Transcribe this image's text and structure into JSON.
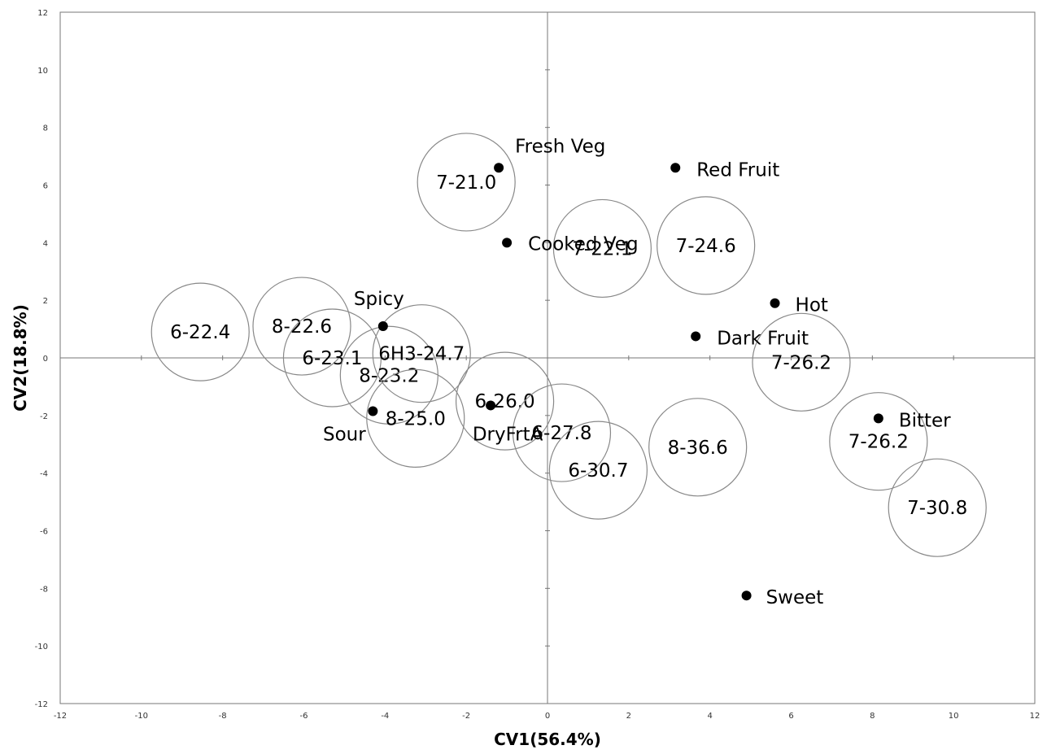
{
  "chart_data": {
    "type": "scatter",
    "xlabel": "CV1(56.4%)",
    "ylabel": "CV2(18.8%)",
    "xlim": [
      -12,
      12
    ],
    "ylim": [
      -12,
      12
    ],
    "xticks": [
      "-12",
      "-10",
      "-8",
      "-6",
      "-4",
      "-2",
      "0",
      "2",
      "4",
      "6",
      "8",
      "10",
      "12"
    ],
    "yticks": [
      "-12",
      "-10",
      "-8",
      "-6",
      "-4",
      "-2",
      "0",
      "2",
      "4",
      "6",
      "8",
      "10",
      "12"
    ],
    "grid": false,
    "samples": [
      {
        "label": "6-22.4",
        "x": -8.55,
        "y": 0.9
      },
      {
        "label": "8-22.6",
        "x": -6.05,
        "y": 1.1
      },
      {
        "label": "6-23.1",
        "x": -5.3,
        "y": 0.0
      },
      {
        "label": "8-23.2",
        "x": -3.9,
        "y": -0.6
      },
      {
        "label": "6H3-24.7",
        "x": -3.1,
        "y": 0.15
      },
      {
        "label": "8-25.0",
        "x": -3.25,
        "y": -2.1
      },
      {
        "label": "7-21.0",
        "x": -2.0,
        "y": 6.1
      },
      {
        "label": "6-26.0",
        "x": -1.05,
        "y": -1.5
      },
      {
        "label": "6-27.8",
        "x": 0.35,
        "y": -2.6
      },
      {
        "label": "6-30.7",
        "x": 1.25,
        "y": -3.9
      },
      {
        "label": "7-22.1",
        "x": 1.35,
        "y": 3.8
      },
      {
        "label": "7-24.6",
        "x": 3.9,
        "y": 3.9
      },
      {
        "label": "8-36.6",
        "x": 3.7,
        "y": -3.1
      },
      {
        "label": "7-26.2",
        "x": 6.25,
        "y": -0.15
      },
      {
        "label": "7-26.2",
        "x": 8.15,
        "y": -2.9
      },
      {
        "label": "7-30.8",
        "x": 9.6,
        "y": -5.2
      }
    ],
    "attributes": [
      {
        "label": "Fresh Veg",
        "x": -1.2,
        "y": 6.6
      },
      {
        "label": "Red Fruit",
        "x": 3.15,
        "y": 6.6
      },
      {
        "label": "Cooked Veg",
        "x": -1.0,
        "y": 4.0
      },
      {
        "label": "Spicy",
        "x": -4.05,
        "y": 1.1
      },
      {
        "label": "Hot",
        "x": 5.6,
        "y": 1.9
      },
      {
        "label": "Dark Fruit",
        "x": 3.65,
        "y": 0.75
      },
      {
        "label": "Sour",
        "x": -4.3,
        "y": -1.85
      },
      {
        "label": "DryFrtA",
        "x": -1.4,
        "y": -1.65
      },
      {
        "label": "Bitter",
        "x": 8.15,
        "y": -2.1
      },
      {
        "label": "Sweet",
        "x": 4.9,
        "y": -8.25
      }
    ]
  }
}
